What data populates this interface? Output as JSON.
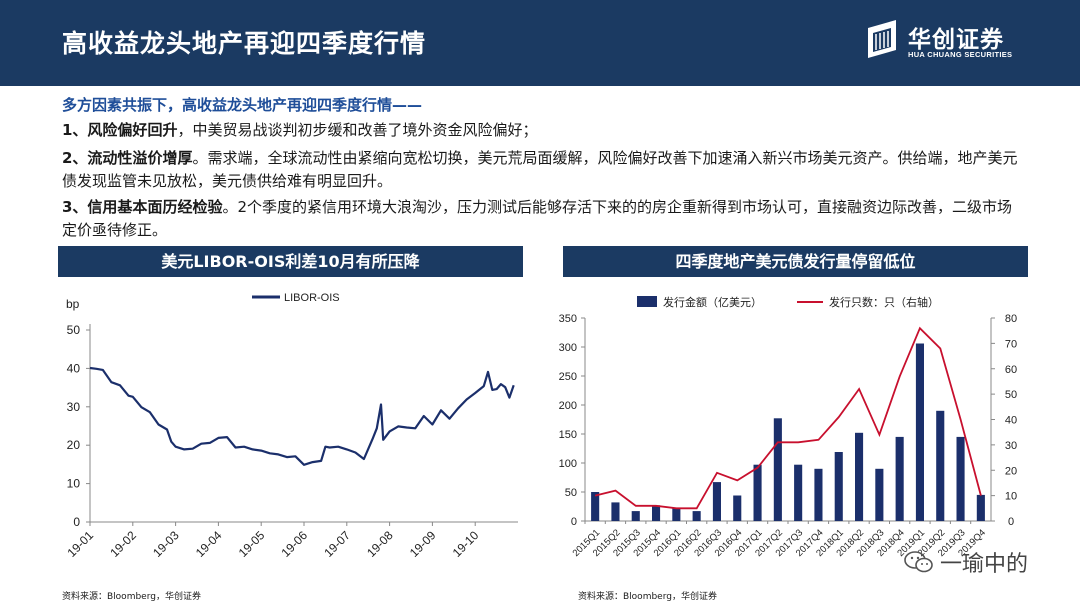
{
  "header": {
    "title": "高收益龙头地产再迎四季度行情",
    "logo_cn": "华创证券",
    "logo_en": "HUA CHUANG SECURITIES"
  },
  "body": {
    "subhead": "多方因素共振下，高收益龙头地产再迎四季度行情——",
    "p1_head": "1、风险偏好回升",
    "p1_text": "，中美贸易战谈判初步缓和改善了境外资金风险偏好；",
    "p2_head": "2、流动性溢价增厚",
    "p2_text": "。需求端，全球流动性由紧缩向宽松切换，美元荒局面缓解，风险偏好改善下加速涌入新兴市场美元资产。供给端，地产美元债发现监管未见放松，美元债供给难有明显回升。",
    "p3_head": "3、信用基本面历经检验",
    "p3_text": "。2个季度的紧信用环境大浪淘沙，压力测试后能够存活下来的的房企重新得到市场认可，直接融资边际改善，二级市场定价亟待修正。"
  },
  "chart_titles": {
    "left": "美元LIBOR-OIS利差10月有所压降",
    "right": "四季度地产美元债发行量停留低位"
  },
  "sources": {
    "left": "资料来源：Bloomberg，华创证券",
    "right": "资料来源：Bloomberg，华创证券"
  },
  "watermark": {
    "text": "一瑜中的"
  },
  "colors": {
    "navy": "#1b3a62",
    "accent_blue": "#1f4e99",
    "series_line": "#1b2f6b",
    "bar": "#1b2f6b",
    "red_line": "#c8102e"
  },
  "chart_data": [
    {
      "type": "line",
      "ylabel": "bp",
      "ylim": [
        0,
        50
      ],
      "yticks": [
        0,
        10,
        20,
        30,
        40,
        50
      ],
      "xticks": [
        "19-01",
        "19-02",
        "19-03",
        "19-04",
        "19-05",
        "19-06",
        "19-07",
        "19-08",
        "19-09",
        "19-10"
      ],
      "legend": "top",
      "grid": false,
      "series": [
        {
          "name": "LIBOR-OIS",
          "points": [
            [
              0.0,
              39.5
            ],
            [
              0.15,
              40.5
            ],
            [
              0.3,
              39
            ],
            [
              0.5,
              37
            ],
            [
              0.7,
              35
            ],
            [
              0.9,
              33.5
            ],
            [
              1.0,
              32
            ],
            [
              1.2,
              30.5
            ],
            [
              1.4,
              28
            ],
            [
              1.6,
              26
            ],
            [
              1.8,
              23.5
            ],
            [
              1.9,
              21.5
            ],
            [
              2.0,
              19
            ],
            [
              2.2,
              19.5
            ],
            [
              2.4,
              18.5
            ],
            [
              2.6,
              21
            ],
            [
              2.8,
              20
            ],
            [
              3.0,
              22.5
            ],
            [
              3.2,
              21.5
            ],
            [
              3.4,
              20
            ],
            [
              3.6,
              19
            ],
            [
              3.8,
              19.5
            ],
            [
              4.0,
              18
            ],
            [
              4.2,
              18.5
            ],
            [
              4.4,
              17
            ],
            [
              4.6,
              17.5
            ],
            [
              4.8,
              16.5
            ],
            [
              5.0,
              15.5
            ],
            [
              5.2,
              15
            ],
            [
              5.4,
              16.5
            ],
            [
              5.5,
              19
            ],
            [
              5.6,
              20
            ],
            [
              5.8,
              19
            ],
            [
              6.0,
              19.5
            ],
            [
              6.2,
              17.5
            ],
            [
              6.4,
              17
            ],
            [
              6.6,
              21
            ],
            [
              6.7,
              25
            ],
            [
              6.8,
              30
            ],
            [
              6.85,
              22
            ],
            [
              7.0,
              23
            ],
            [
              7.2,
              25.5
            ],
            [
              7.4,
              24
            ],
            [
              7.6,
              25
            ],
            [
              7.8,
              27
            ],
            [
              8.0,
              26
            ],
            [
              8.2,
              28.5
            ],
            [
              8.4,
              27.5
            ],
            [
              8.6,
              29
            ],
            [
              8.8,
              32.5
            ],
            [
              9.0,
              33
            ],
            [
              9.2,
              36
            ],
            [
              9.3,
              38.5
            ],
            [
              9.4,
              35
            ],
            [
              9.5,
              34
            ],
            [
              9.6,
              36.5
            ],
            [
              9.7,
              34.5
            ],
            [
              9.8,
              33
            ],
            [
              9.9,
              35
            ]
          ]
        }
      ]
    },
    {
      "type": "bar",
      "categories": [
        "2015Q1",
        "2015Q2",
        "2015Q3",
        "2015Q4",
        "2016Q1",
        "2016Q2",
        "2016Q3",
        "2016Q4",
        "2017Q1",
        "2017Q2",
        "2017Q3",
        "2017Q4",
        "2018Q1",
        "2018Q2",
        "2018Q3",
        "2018Q4",
        "2019Q1",
        "2019Q2",
        "2019Q3",
        "2019Q4"
      ],
      "ylim": [
        0,
        350
      ],
      "yticks": [
        0,
        50,
        100,
        150,
        200,
        250,
        300,
        350
      ],
      "y2lim": [
        0,
        80
      ],
      "y2ticks": [
        0,
        10,
        20,
        30,
        40,
        50,
        60,
        70,
        80
      ],
      "legend": "top",
      "grid": false,
      "series": [
        {
          "name": "发行金额（亿美元）",
          "axis": "left",
          "kind": "bar",
          "values": [
            50,
            32,
            17,
            27,
            23,
            17,
            67,
            44,
            97,
            177,
            97,
            90,
            119,
            152,
            90,
            145,
            306,
            190,
            145,
            45
          ]
        },
        {
          "name": "发行只数：只（右轴）",
          "axis": "right",
          "kind": "line",
          "values": [
            10,
            12,
            6,
            6,
            5,
            5,
            19,
            16,
            21,
            31,
            31,
            32,
            41,
            52,
            34,
            57,
            76,
            68,
            40,
            10
          ]
        }
      ]
    }
  ]
}
